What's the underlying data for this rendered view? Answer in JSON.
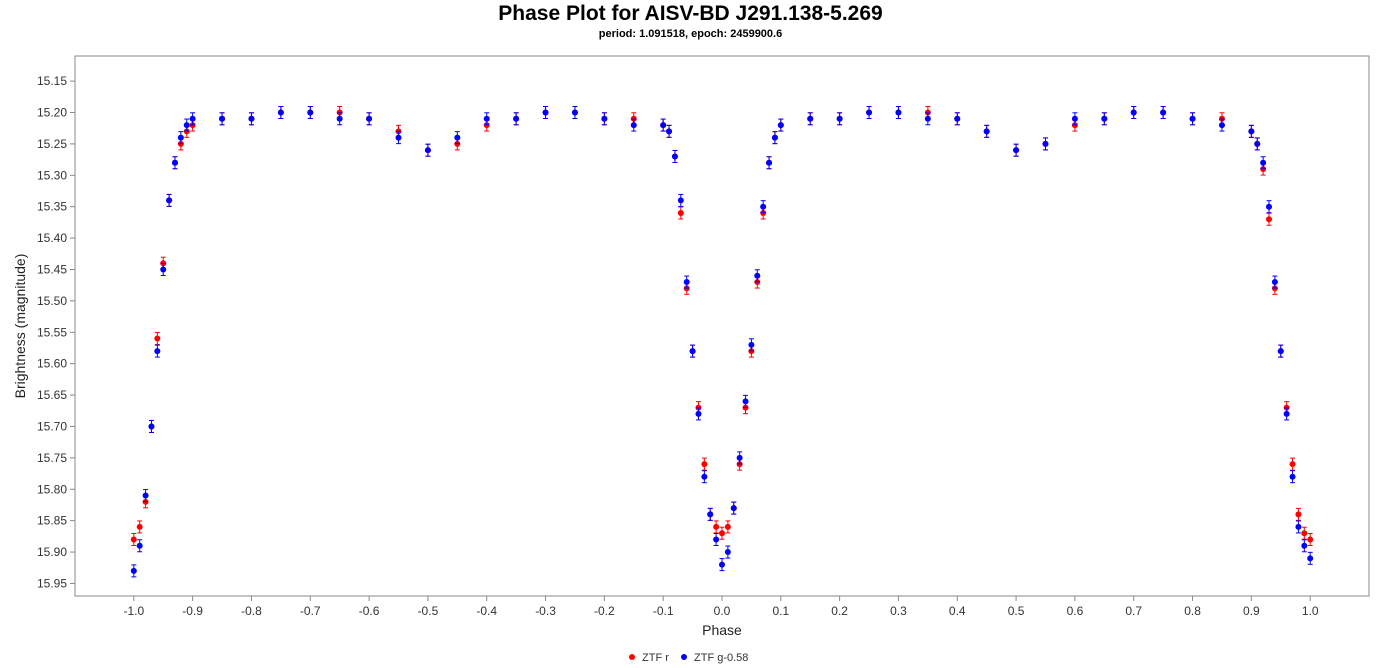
{
  "chart_data": {
    "type": "scatter",
    "title": "Phase Plot for AISV-BD J291.138-5.269",
    "subtitle": "period: 1.091518, epoch: 2459900.6",
    "xlabel": "Phase",
    "ylabel": "Brightness (magnitude)",
    "xlim": [
      -1.1,
      1.1
    ],
    "ylim": [
      15.97,
      15.11
    ],
    "y_inverted": true,
    "x_ticks": [
      -1.0,
      -0.9,
      -0.8,
      -0.7,
      -0.6,
      -0.5,
      -0.4,
      -0.3,
      -0.2,
      -0.1,
      0.0,
      0.1,
      0.2,
      0.3,
      0.4,
      0.5,
      0.6,
      0.7,
      0.8,
      0.9,
      1.0
    ],
    "x_tick_labels": [
      "-1.0",
      "-0.9",
      "-0.8",
      "-0.7",
      "-0.6",
      "-0.5",
      "-0.4",
      "-0.3",
      "-0.2",
      "-0.1",
      "0.0",
      "0.1",
      "0.2",
      "0.3",
      "0.4",
      "0.5",
      "0.6",
      "0.7",
      "0.8",
      "0.9",
      "1.0"
    ],
    "y_ticks": [
      15.15,
      15.2,
      15.25,
      15.3,
      15.35,
      15.4,
      15.45,
      15.5,
      15.55,
      15.6,
      15.65,
      15.7,
      15.75,
      15.8,
      15.85,
      15.9,
      15.95
    ],
    "y_tick_labels": [
      "15.15",
      "15.20",
      "15.25",
      "15.30",
      "15.35",
      "15.40",
      "15.45",
      "15.50",
      "15.55",
      "15.60",
      "15.65",
      "15.70",
      "15.75",
      "15.80",
      "15.85",
      "15.90",
      "15.95"
    ],
    "grid": false,
    "legend_position": "bottom-center",
    "series": [
      {
        "name": "ZTF r",
        "color": "#ff0000",
        "x": [
          -1.0,
          -0.99,
          -0.98,
          -0.97,
          -0.96,
          -0.95,
          -0.94,
          -0.93,
          -0.92,
          -0.91,
          -0.9,
          -0.85,
          -0.8,
          -0.75,
          -0.7,
          -0.65,
          -0.6,
          -0.55,
          -0.5,
          -0.45,
          -0.4,
          -0.35,
          -0.3,
          -0.25,
          -0.2,
          -0.15,
          -0.1,
          -0.09,
          -0.08,
          -0.07,
          -0.06,
          -0.05,
          -0.04,
          -0.03,
          -0.02,
          -0.01,
          0.0,
          0.01,
          0.02,
          0.03,
          0.04,
          0.05,
          0.06,
          0.07,
          0.08,
          0.09,
          0.1,
          0.15,
          0.2,
          0.25,
          0.3,
          0.35,
          0.4,
          0.45,
          0.5,
          0.55,
          0.6,
          0.65,
          0.7,
          0.75,
          0.8,
          0.85,
          0.9,
          0.91,
          0.92,
          0.93,
          0.94,
          0.95,
          0.96,
          0.97,
          0.98,
          0.99,
          1.0
        ],
        "y": [
          15.88,
          15.86,
          15.82,
          15.7,
          15.56,
          15.44,
          15.34,
          15.28,
          15.25,
          15.23,
          15.22,
          15.21,
          15.21,
          15.2,
          15.2,
          15.2,
          15.21,
          15.23,
          15.26,
          15.25,
          15.22,
          15.21,
          15.2,
          15.2,
          15.21,
          15.21,
          15.22,
          15.23,
          15.27,
          15.36,
          15.48,
          15.58,
          15.67,
          15.76,
          15.84,
          15.86,
          15.87,
          15.86,
          15.83,
          15.76,
          15.67,
          15.58,
          15.47,
          15.36,
          15.28,
          15.24,
          15.22,
          15.21,
          15.21,
          15.2,
          15.2,
          15.2,
          15.21,
          15.23,
          15.26,
          15.25,
          15.22,
          15.21,
          15.2,
          15.2,
          15.21,
          15.21,
          15.23,
          15.25,
          15.29,
          15.37,
          15.48,
          15.58,
          15.67,
          15.76,
          15.84,
          15.87,
          15.88
        ]
      },
      {
        "name": "ZTF g-0.58",
        "color": "#0000ff",
        "x": [
          -1.0,
          -0.99,
          -0.98,
          -0.97,
          -0.96,
          -0.95,
          -0.94,
          -0.93,
          -0.92,
          -0.91,
          -0.9,
          -0.85,
          -0.8,
          -0.75,
          -0.7,
          -0.65,
          -0.6,
          -0.55,
          -0.5,
          -0.45,
          -0.4,
          -0.35,
          -0.3,
          -0.25,
          -0.2,
          -0.15,
          -0.1,
          -0.09,
          -0.08,
          -0.07,
          -0.06,
          -0.05,
          -0.04,
          -0.03,
          -0.02,
          -0.01,
          0.0,
          0.01,
          0.02,
          0.03,
          0.04,
          0.05,
          0.06,
          0.07,
          0.08,
          0.09,
          0.1,
          0.15,
          0.2,
          0.25,
          0.3,
          0.35,
          0.4,
          0.45,
          0.5,
          0.55,
          0.6,
          0.65,
          0.7,
          0.75,
          0.8,
          0.85,
          0.9,
          0.91,
          0.92,
          0.93,
          0.94,
          0.95,
          0.96,
          0.97,
          0.98,
          0.99,
          1.0
        ],
        "y": [
          15.93,
          15.89,
          15.81,
          15.7,
          15.58,
          15.45,
          15.34,
          15.28,
          15.24,
          15.22,
          15.21,
          15.21,
          15.21,
          15.2,
          15.2,
          15.21,
          15.21,
          15.24,
          15.26,
          15.24,
          15.21,
          15.21,
          15.2,
          15.2,
          15.21,
          15.22,
          15.22,
          15.23,
          15.27,
          15.34,
          15.47,
          15.58,
          15.68,
          15.78,
          15.84,
          15.88,
          15.92,
          15.9,
          15.83,
          15.75,
          15.66,
          15.57,
          15.46,
          15.35,
          15.28,
          15.24,
          15.22,
          15.21,
          15.21,
          15.2,
          15.2,
          15.21,
          15.21,
          15.23,
          15.26,
          15.25,
          15.21,
          15.21,
          15.2,
          15.2,
          15.21,
          15.22,
          15.23,
          15.25,
          15.28,
          15.35,
          15.47,
          15.58,
          15.68,
          15.78,
          15.86,
          15.89,
          15.91
        ]
      }
    ]
  }
}
